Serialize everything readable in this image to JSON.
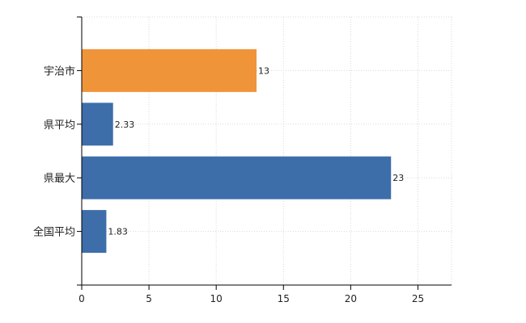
{
  "chart_data": {
    "type": "bar",
    "orientation": "horizontal",
    "categories": [
      "宇治市",
      "県平均",
      "県最大",
      "全国平均"
    ],
    "values": [
      13,
      2.33,
      23,
      1.83
    ],
    "value_labels": [
      "13",
      "2.33",
      "23",
      "1.83"
    ],
    "colors": [
      "#F0943A",
      "#3D6EAA",
      "#3D6EAA",
      "#3D6EAA"
    ],
    "xlim": [
      0,
      27.5
    ],
    "xticks": [
      0,
      5,
      10,
      15,
      20,
      25
    ],
    "grid": true,
    "title": "",
    "xlabel": "",
    "ylabel": ""
  }
}
